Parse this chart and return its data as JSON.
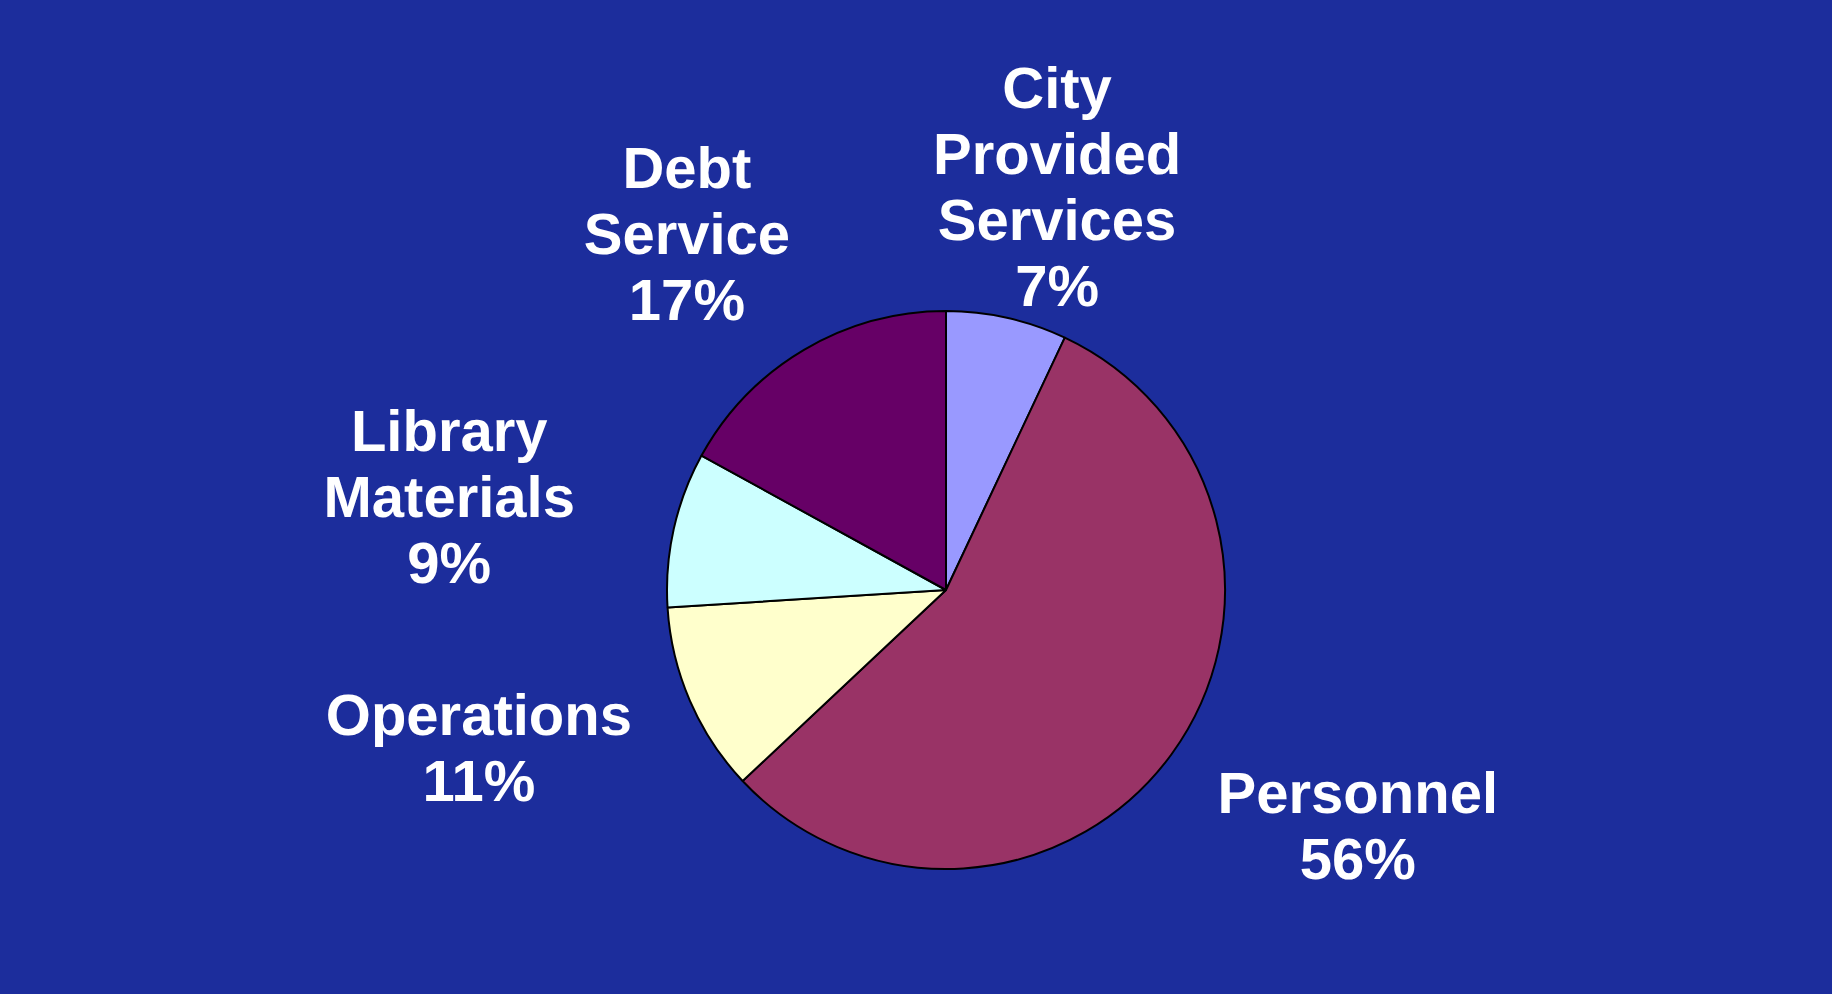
{
  "chart_data": {
    "type": "pie",
    "categories": [
      "City Provided Services",
      "Personnel",
      "Operations",
      "Library Materials",
      "Debt Service"
    ],
    "values": [
      7,
      56,
      11,
      9,
      17
    ],
    "value_labels": [
      "7%",
      "56%",
      "11%",
      "9%",
      "17%"
    ],
    "colors": [
      "#9999ff",
      "#993366",
      "#ffffcc",
      "#ccffff",
      "#660066"
    ],
    "legend": false
  }
}
